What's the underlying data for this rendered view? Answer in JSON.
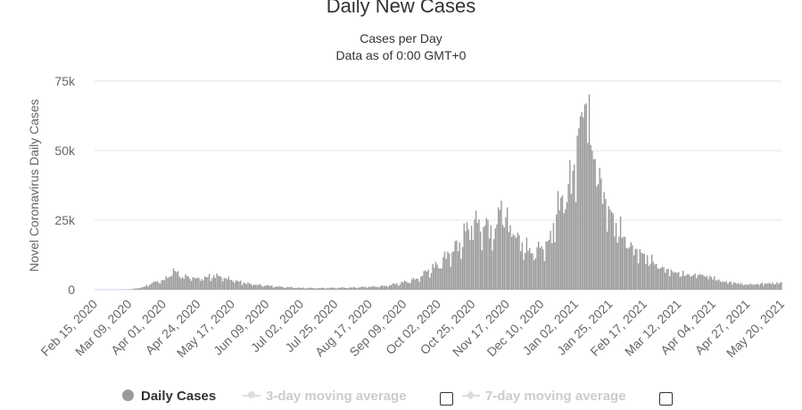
{
  "chart_data": {
    "type": "bar",
    "title": "Daily New Cases",
    "subtitle": [
      "Cases per Day",
      "Data as of 0:00 GMT+0"
    ],
    "ylabel": "Novel Coronavirus Daily Cases",
    "xlabel": "",
    "ylim": [
      0,
      75000
    ],
    "yticks": [
      0,
      25000,
      50000,
      75000
    ],
    "ytick_labels": [
      "0",
      "25k",
      "50k",
      "75k"
    ],
    "grid": true,
    "legend_position": "bottom",
    "x_start": "2020-02-15",
    "x_end": "2021-05-21",
    "x_tick_labels": [
      "Feb 15, 2020",
      "Mar 09, 2020",
      "Apr 01, 2020",
      "Apr 24, 2020",
      "May 17, 2020",
      "Jun 09, 2020",
      "Jul 02, 2020",
      "Jul 25, 2020",
      "Aug 17, 2020",
      "Sep 09, 2020",
      "Oct 02, 2020",
      "Oct 25, 2020",
      "Nov 17, 2020",
      "Dec 10, 2020",
      "Jan 02, 2021",
      "Jan 25, 2021",
      "Feb 17, 2021",
      "Mar 12, 2021",
      "Apr 04, 2021",
      "Apr 27, 2021",
      "May 20, 2021"
    ],
    "series": [
      {
        "name": "Daily Cases",
        "color": "#999999",
        "points": [
          [
            "2020-02-15",
            0
          ],
          [
            "2020-02-22",
            0
          ],
          [
            "2020-03-01",
            0
          ],
          [
            "2020-03-09",
            100
          ],
          [
            "2020-03-15",
            500
          ],
          [
            "2020-03-20",
            1200
          ],
          [
            "2020-03-25",
            2500
          ],
          [
            "2020-04-01",
            3500
          ],
          [
            "2020-04-05",
            4500
          ],
          [
            "2020-04-08",
            7600
          ],
          [
            "2020-04-12",
            4700
          ],
          [
            "2020-04-18",
            4800
          ],
          [
            "2020-04-24",
            4300
          ],
          [
            "2020-05-01",
            4500
          ],
          [
            "2020-05-05",
            5200
          ],
          [
            "2020-05-10",
            4600
          ],
          [
            "2020-05-17",
            3500
          ],
          [
            "2020-05-25",
            2500
          ],
          [
            "2020-06-01",
            1800
          ],
          [
            "2020-06-09",
            1500
          ],
          [
            "2020-06-20",
            1000
          ],
          [
            "2020-07-02",
            700
          ],
          [
            "2020-07-15",
            600
          ],
          [
            "2020-07-25",
            700
          ],
          [
            "2020-08-05",
            800
          ],
          [
            "2020-08-17",
            1000
          ],
          [
            "2020-08-28",
            1400
          ],
          [
            "2020-09-09",
            2600
          ],
          [
            "2020-09-18",
            4000
          ],
          [
            "2020-09-25",
            6500
          ],
          [
            "2020-10-02",
            9000
          ],
          [
            "2020-10-10",
            13000
          ],
          [
            "2020-10-17",
            17000
          ],
          [
            "2020-10-21",
            21000
          ],
          [
            "2020-10-25",
            23000
          ],
          [
            "2020-10-29",
            24000
          ],
          [
            "2020-11-03",
            23000
          ],
          [
            "2020-11-10",
            22000
          ],
          [
            "2020-11-14",
            32000
          ],
          [
            "2020-11-17",
            26000
          ],
          [
            "2020-11-22",
            20000
          ],
          [
            "2020-11-28",
            17000
          ],
          [
            "2020-12-05",
            13000
          ],
          [
            "2020-12-10",
            15000
          ],
          [
            "2020-12-16",
            18000
          ],
          [
            "2020-12-21",
            27000
          ],
          [
            "2020-12-25",
            34000
          ],
          [
            "2020-12-29",
            38000
          ],
          [
            "2021-01-02",
            45000
          ],
          [
            "2021-01-05",
            58000
          ],
          [
            "2021-01-08",
            62000
          ],
          [
            "2021-01-10",
            67000
          ],
          [
            "2021-01-13",
            52000
          ],
          [
            "2021-01-16",
            47000
          ],
          [
            "2021-01-20",
            40000
          ],
          [
            "2021-01-25",
            30000
          ],
          [
            "2021-01-30",
            24000
          ],
          [
            "2021-02-05",
            19000
          ],
          [
            "2021-02-10",
            16000
          ],
          [
            "2021-02-17",
            13000
          ],
          [
            "2021-02-24",
            10000
          ],
          [
            "2021-03-03",
            8000
          ],
          [
            "2021-03-12",
            6000
          ],
          [
            "2021-03-20",
            5500
          ],
          [
            "2021-03-28",
            5300
          ],
          [
            "2021-04-04",
            4500
          ],
          [
            "2021-04-12",
            3000
          ],
          [
            "2021-04-20",
            2500
          ],
          [
            "2021-04-27",
            2000
          ],
          [
            "2021-05-05",
            2100
          ],
          [
            "2021-05-12",
            2300
          ],
          [
            "2021-05-20",
            2500
          ]
        ]
      },
      {
        "name": "3-day moving average",
        "visible": false
      },
      {
        "name": "7-day moving average",
        "visible": false
      }
    ]
  },
  "legend": {
    "daily_label": "Daily Cases",
    "ma3_label": "3-day moving average",
    "ma7_label": "7-day moving average"
  }
}
